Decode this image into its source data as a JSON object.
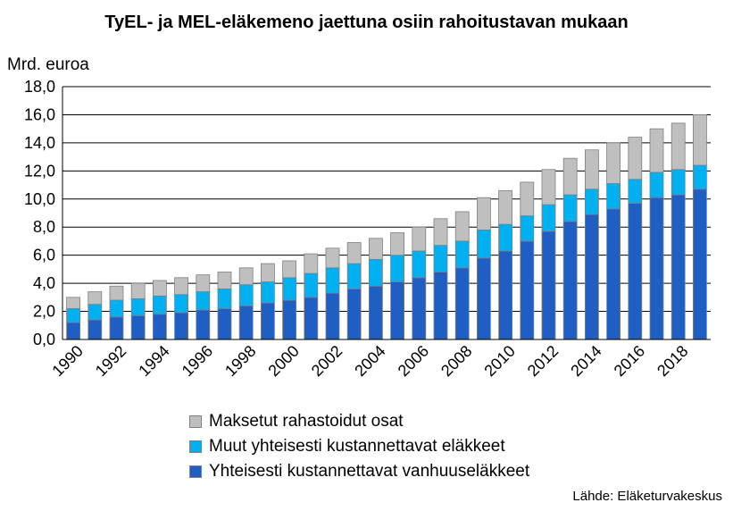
{
  "chart_data": {
    "type": "bar",
    "stacked": true,
    "title": "TyEL- ja MEL-eläkemeno jaettuna osiin rahoitustavan mukaan",
    "ylabel": "Mrd. euroa",
    "ylim": [
      0,
      18
    ],
    "ytick_step": 2,
    "ytick_labels": [
      "0,0",
      "2,0",
      "4,0",
      "6,0",
      "8,0",
      "10,0",
      "12,0",
      "14,0",
      "16,0",
      "18,0"
    ],
    "grid": true,
    "legend_position": "bottom",
    "categories": [
      1990,
      1991,
      1992,
      1993,
      1994,
      1995,
      1996,
      1997,
      1998,
      1999,
      2000,
      2001,
      2002,
      2003,
      2004,
      2005,
      2006,
      2007,
      2008,
      2009,
      2010,
      2011,
      2012,
      2013,
      2014,
      2015,
      2016,
      2017,
      2018,
      2019
    ],
    "xtick_labels": [
      "1990",
      "1992",
      "1994",
      "1996",
      "1998",
      "2000",
      "2002",
      "2004",
      "2006",
      "2008",
      "2010",
      "2012",
      "2014",
      "2016",
      "2018"
    ],
    "series": [
      {
        "name": "Yhteisesti kustannettavat vanhuuseläkkeet",
        "color": "#1f5fc4",
        "values": [
          1.2,
          1.4,
          1.6,
          1.7,
          1.8,
          1.9,
          2.1,
          2.2,
          2.4,
          2.6,
          2.8,
          3.0,
          3.3,
          3.6,
          3.8,
          4.1,
          4.4,
          4.8,
          5.1,
          5.8,
          6.3,
          7.0,
          7.7,
          8.4,
          8.9,
          9.3,
          9.7,
          10.1,
          10.3,
          10.7
        ]
      },
      {
        "name": "Muut yhteisesti kustannettavat eläkkeet",
        "color": "#00b0f0",
        "values": [
          1.0,
          1.1,
          1.2,
          1.2,
          1.3,
          1.3,
          1.3,
          1.4,
          1.5,
          1.5,
          1.6,
          1.7,
          1.8,
          1.8,
          1.9,
          1.9,
          1.9,
          1.9,
          1.9,
          2.0,
          1.9,
          1.8,
          1.9,
          1.9,
          1.8,
          1.8,
          1.7,
          1.8,
          1.8,
          1.7
        ]
      },
      {
        "name": "Maksetut rahastoidut osat",
        "color": "#bfbfbf",
        "values": [
          0.8,
          0.9,
          1.0,
          1.1,
          1.1,
          1.2,
          1.2,
          1.2,
          1.2,
          1.3,
          1.2,
          1.4,
          1.4,
          1.5,
          1.5,
          1.6,
          1.7,
          1.9,
          2.1,
          2.3,
          2.4,
          2.4,
          2.5,
          2.6,
          2.8,
          2.9,
          3.0,
          3.1,
          3.3,
          3.6
        ]
      }
    ],
    "legend_order": [
      2,
      1,
      0
    ],
    "source": "Lähde: Eläketurvakeskus"
  }
}
